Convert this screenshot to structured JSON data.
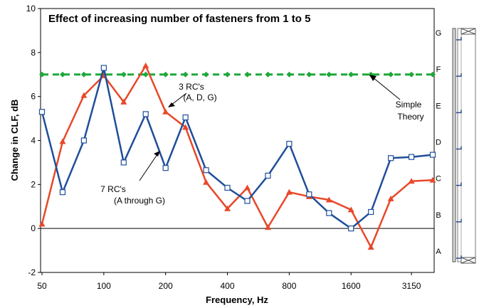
{
  "chart_data": {
    "type": "line",
    "title": "Effect of increasing number of fasteners from 1  to 5",
    "xlabel": "Frequency, Hz",
    "ylabel": "Change in CLF, dB",
    "x_scale": "log",
    "ylim": [
      -2,
      10
    ],
    "y_ticks": [
      "-2",
      "0",
      "2",
      "4",
      "6",
      "8",
      "10"
    ],
    "x_tick_labels": [
      "50",
      "100",
      "200",
      "400",
      "800",
      "1600",
      "3150"
    ],
    "x_tick_values": [
      50,
      100,
      200,
      400,
      800,
      1600,
      3150
    ],
    "x": [
      50,
      63,
      80,
      100,
      125,
      160,
      200,
      250,
      315,
      400,
      500,
      630,
      800,
      1000,
      1250,
      1600,
      2000,
      2500,
      3150,
      4000
    ],
    "series": [
      {
        "values": [
          5.3,
          1.65,
          4.0,
          7.3,
          3.0,
          5.2,
          2.75,
          5.05,
          2.65,
          1.85,
          1.25,
          2.4,
          3.85,
          1.55,
          0.7,
          0.0,
          0.75,
          3.2,
          3.25,
          3.35
        ],
        "color": "#1f4e9a",
        "marker": "open-square"
      },
      {
        "values": [
          0.2,
          3.95,
          6.05,
          6.95,
          5.75,
          7.4,
          5.3,
          4.6,
          2.1,
          0.9,
          1.85,
          0.05,
          1.65,
          1.45,
          1.3,
          0.85,
          -0.85,
          1.35,
          2.15,
          2.2
        ],
        "color": "#e8482a",
        "marker": "filled-triangle"
      },
      {
        "values": [
          7.0,
          7.0,
          7.0,
          7.0,
          7.0,
          7.0,
          7.0,
          7.0,
          7.0,
          7.0,
          7.0,
          7.0,
          7.0,
          7.0,
          7.0,
          7.0,
          7.0,
          7.0,
          7.0,
          7.0
        ],
        "color": "#1fa83a",
        "marker": "filled-diamond",
        "dashed": true
      }
    ],
    "annotations": [
      {
        "line1": "3 RC's",
        "line2": "(A, D, G)"
      },
      {
        "line1": "7 RC's",
        "line2": "(A through G)"
      },
      {
        "line1": "Simple",
        "line2": "Theory"
      }
    ],
    "grid": false,
    "legend": "none"
  },
  "side_panel": {
    "labels": [
      "G",
      "F",
      "E",
      "D",
      "C",
      "B",
      "A"
    ]
  }
}
